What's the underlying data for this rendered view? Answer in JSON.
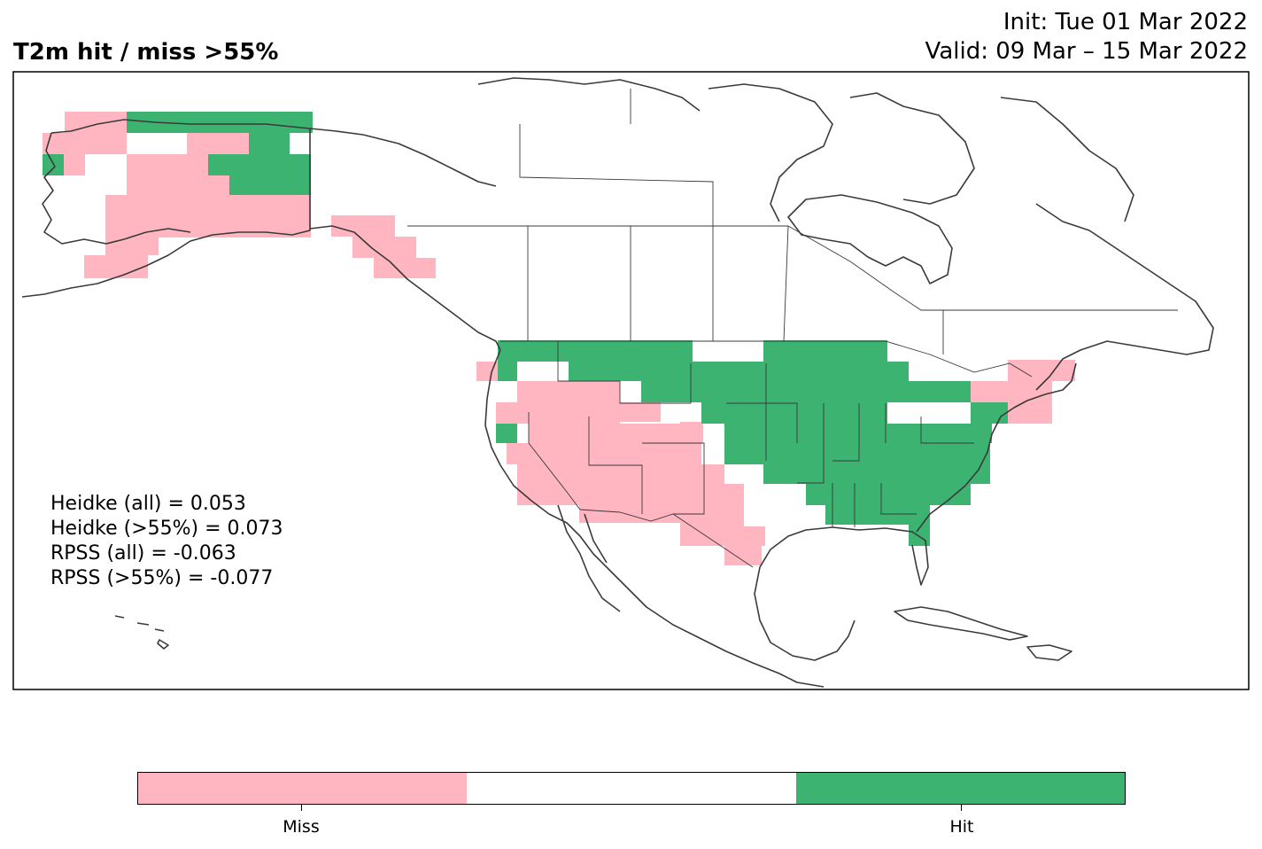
{
  "title": "T2m hit / miss  >55%",
  "init_text": "Init: Tue 01 Mar 2022",
  "valid_text": "Valid: 09 Mar – 15 Mar 2022",
  "scores": {
    "heidke_all": "Heidke (all) = 0.053",
    "heidke_55": "Heidke (>55%) = 0.073",
    "rpss_all": "RPSS (all) = -0.063",
    "rpss_55": "RPSS (>55%) = -0.077"
  },
  "colors": {
    "miss": "#ffb6c1",
    "neutral": "#ffffff",
    "hit": "#3cb371",
    "coast": "#3a3a3a"
  },
  "colorbar": {
    "labels": [
      "Miss",
      "Hit"
    ]
  },
  "map_data": {
    "region": "North America",
    "categories": [
      "Miss",
      "Neutral",
      "Hit"
    ],
    "miss_regions": [
      "Alaska (western/southern)",
      "Southeast Alaska / Panhandle",
      "US Southwest",
      "Southern Rockies",
      "Texas",
      "New England"
    ],
    "hit_regions": [
      "Northern Alaska",
      "Northern Plains",
      "Upper Midwest",
      "Great Lakes",
      "Ohio Valley",
      "Southeast US",
      "Mid-Atlantic"
    ]
  }
}
